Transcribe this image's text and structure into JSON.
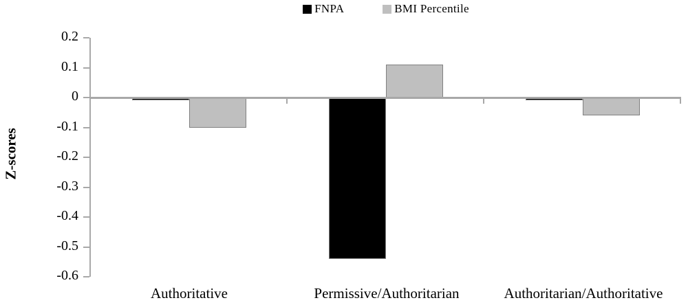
{
  "chart_data": {
    "type": "bar",
    "title": "",
    "ylabel": "Z-scores",
    "xlabel": "",
    "categories": [
      "Authoritative",
      "Permissive/Authoritarian",
      "Authoritarian/Authoritative"
    ],
    "series": [
      {
        "name": "FNPA",
        "color": "#000000",
        "values": [
          -0.01,
          -0.54,
          -0.01
        ]
      },
      {
        "name": "BMI Percentile",
        "color": "#bfbfbf",
        "values": [
          -0.1,
          0.11,
          -0.06
        ]
      }
    ],
    "ylim": [
      -0.6,
      0.2
    ],
    "ytick_labels": [
      "0.2",
      "0.1",
      "0",
      "-0.1",
      "-0.2",
      "-0.3",
      "-0.4",
      "-0.5",
      "-0.6"
    ],
    "legend_position": "top",
    "grid": false,
    "axis_color": "#a8a8a8",
    "bar_border_color": "#808080",
    "text_color": "#000000"
  }
}
